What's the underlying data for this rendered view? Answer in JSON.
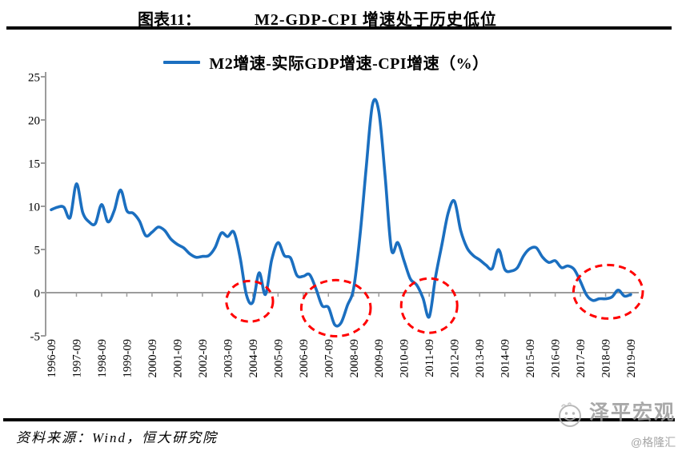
{
  "header": {
    "figure_label": "图表11：",
    "title": "M2-GDP-CPI 增速处于历史低位"
  },
  "legend": {
    "label": "M2增速-实际GDP增速-CPI增速（%）",
    "line_color": "#1b6fc0"
  },
  "footer": {
    "source": "资料来源：Wind，恒大研究院",
    "watermark": "泽平宏观",
    "watermark_icon": "smiley-face-icon",
    "watermark_handle": "@格隆汇"
  },
  "chart_data": {
    "type": "line",
    "title": "M2增速-实际GDP增速-CPI增速（%）",
    "legend_position": "top",
    "grid": false,
    "x_start": "1996-09",
    "x_interval": "quarterly",
    "categories": [
      "1996-09",
      "1997-09",
      "1998-09",
      "1999-09",
      "2000-09",
      "2001-09",
      "2002-09",
      "2003-09",
      "2004-09",
      "2005-09",
      "2006-09",
      "2007-09",
      "2008-09",
      "2009-09",
      "2010-09",
      "2011-09",
      "2012-09",
      "2013-09",
      "2014-09",
      "2015-09",
      "2016-09",
      "2017-09",
      "2018-09",
      "2019-09"
    ],
    "y_ticks": [
      25,
      20,
      15,
      10,
      5,
      0,
      -5
    ],
    "ylim": [
      -5,
      25
    ],
    "axis_color": "#9c9c9c",
    "series": [
      {
        "name": "M2增速-实际GDP增速-CPI增速（%）",
        "color": "#1b6fc0",
        "values": [
          9.6,
          9.9,
          9.9,
          8.7,
          12.6,
          9.3,
          8.2,
          8.0,
          10.2,
          8.2,
          9.5,
          11.9,
          9.5,
          9.2,
          8.3,
          6.6,
          7.0,
          7.6,
          7.2,
          6.2,
          5.6,
          5.2,
          4.5,
          4.1,
          4.2,
          4.3,
          5.2,
          6.9,
          6.5,
          7.0,
          4.0,
          -0.3,
          -1.1,
          2.3,
          -0.2,
          3.8,
          5.8,
          4.3,
          4.0,
          2.0,
          1.9,
          2.1,
          0.5,
          -1.5,
          -1.7,
          -3.7,
          -3.5,
          -1.5,
          0.5,
          6.5,
          14.5,
          21.8,
          21.0,
          13.5,
          5.0,
          5.8,
          3.7,
          1.6,
          0.9,
          -0.6,
          -2.8,
          1.8,
          5.5,
          9.2,
          10.6,
          7.2,
          5.2,
          4.3,
          3.8,
          3.2,
          2.8,
          5.0,
          2.7,
          2.5,
          2.9,
          4.3,
          5.1,
          5.2,
          4.1,
          3.5,
          3.7,
          2.9,
          3.1,
          2.7,
          1.3,
          -0.3,
          -0.9,
          -0.7,
          -0.7,
          -0.5,
          0.3,
          -0.4,
          -0.2
        ]
      }
    ],
    "annotations": {
      "style": "dashed-ellipse",
      "color": "#ff0000",
      "meaning": "历史低位区间标注",
      "circles": [
        {
          "around": "2004",
          "cx_quarter": 31.5,
          "cy_value": -1.0,
          "rx_quarters": 3.7,
          "ry_values": 2.35
        },
        {
          "around": "2007-2008",
          "cx_quarter": 45.2,
          "cy_value": -1.8,
          "rx_quarters": 5.5,
          "ry_values": 3.25
        },
        {
          "around": "2011",
          "cx_quarter": 60.0,
          "cy_value": -1.5,
          "rx_quarters": 4.45,
          "ry_values": 3.15
        },
        {
          "around": "2018-2019",
          "cx_quarter": 88.4,
          "cy_value": 0.1,
          "rx_quarters": 5.5,
          "ry_values": 3.1
        }
      ]
    }
  }
}
